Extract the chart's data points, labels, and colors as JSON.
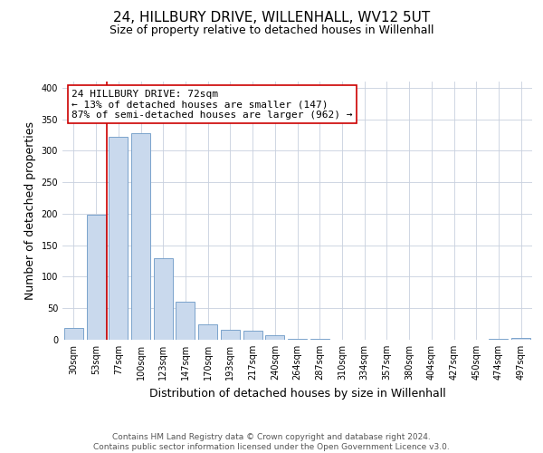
{
  "title": "24, HILLBURY DRIVE, WILLENHALL, WV12 5UT",
  "subtitle": "Size of property relative to detached houses in Willenhall",
  "xlabel": "Distribution of detached houses by size in Willenhall",
  "ylabel": "Number of detached properties",
  "categories": [
    "30sqm",
    "53sqm",
    "77sqm",
    "100sqm",
    "123sqm",
    "147sqm",
    "170sqm",
    "193sqm",
    "217sqm",
    "240sqm",
    "264sqm",
    "287sqm",
    "310sqm",
    "334sqm",
    "357sqm",
    "380sqm",
    "404sqm",
    "427sqm",
    "450sqm",
    "474sqm",
    "497sqm"
  ],
  "values": [
    19,
    199,
    322,
    328,
    129,
    61,
    25,
    16,
    14,
    7,
    1,
    1,
    0,
    0,
    0,
    0,
    0,
    0,
    0,
    1,
    3
  ],
  "bar_color": "#c9d9ed",
  "bar_edge_color": "#7ba3cc",
  "property_line_color": "#cc0000",
  "annotation_text": "24 HILLBURY DRIVE: 72sqm\n← 13% of detached houses are smaller (147)\n87% of semi-detached houses are larger (962) →",
  "annotation_box_color": "#ffffff",
  "annotation_box_edge_color": "#cc0000",
  "ylim": [
    0,
    410
  ],
  "yticks": [
    0,
    50,
    100,
    150,
    200,
    250,
    300,
    350,
    400
  ],
  "background_color": "#ffffff",
  "grid_color": "#c8d0de",
  "footer_text": "Contains HM Land Registry data © Crown copyright and database right 2024.\nContains public sector information licensed under the Open Government Licence v3.0.",
  "title_fontsize": 11,
  "subtitle_fontsize": 9,
  "axis_label_fontsize": 9,
  "tick_fontsize": 7,
  "annotation_fontsize": 8,
  "footer_fontsize": 6.5
}
